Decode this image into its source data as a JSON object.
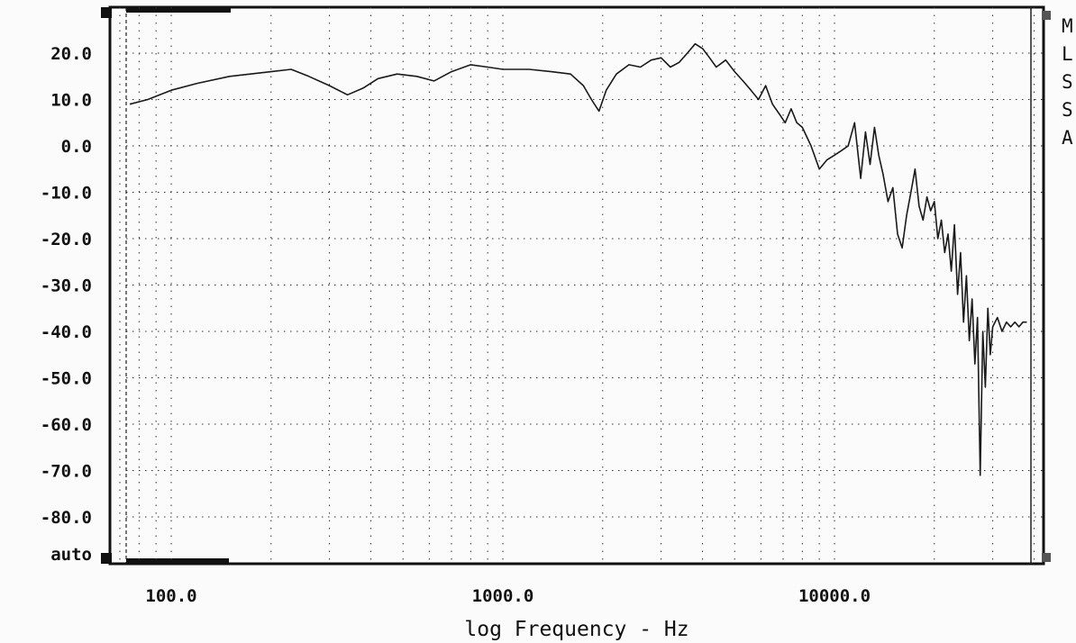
{
  "chart_data": {
    "type": "line",
    "title": "",
    "xlabel": "log Frequency - Hz",
    "ylabel": "",
    "x_scale": "log",
    "xlim": [
      70,
      40000
    ],
    "ylim": [
      -90,
      30
    ],
    "grid": true,
    "x_tick_labels": [
      {
        "value": 100,
        "label": "100.0"
      },
      {
        "value": 1000,
        "label": "1000.0"
      },
      {
        "value": 10000,
        "label": "10000.0"
      }
    ],
    "y_tick_labels": [
      {
        "value": 20,
        "label": "20.0"
      },
      {
        "value": 10,
        "label": "10.0"
      },
      {
        "value": 0,
        "label": "0.0"
      },
      {
        "value": -10,
        "label": "-10.0"
      },
      {
        "value": -20,
        "label": "-20.0"
      },
      {
        "value": -30,
        "label": "-30.0"
      },
      {
        "value": -40,
        "label": "-40.0"
      },
      {
        "value": -50,
        "label": "-50.0"
      },
      {
        "value": -60,
        "label": "-60.0"
      },
      {
        "value": -70,
        "label": "-70.0"
      },
      {
        "value": -80,
        "label": "-80.0"
      },
      {
        "value": -90,
        "label": "auto"
      }
    ],
    "side_letters": [
      "M",
      "L",
      "S",
      "S",
      "A"
    ],
    "series": [
      {
        "x": [
          75,
          85,
          100,
          120,
          150,
          200,
          230,
          260,
          300,
          340,
          380,
          420,
          480,
          550,
          620,
          700,
          800,
          900,
          1000,
          1200,
          1400,
          1600,
          1750,
          1850,
          1950,
          2050,
          2200,
          2400,
          2600,
          2800,
          3000,
          3200,
          3400,
          3600,
          3800,
          4000,
          4200,
          4400,
          4700,
          5000,
          5300,
          5600,
          5900,
          6200,
          6500,
          6800,
          7100,
          7400,
          7700,
          8000,
          8500,
          9000,
          9500,
          10000,
          10500,
          11000,
          11500,
          12000,
          12400,
          12800,
          13200,
          13600,
          14000,
          14500,
          15000,
          15500,
          16000,
          16500,
          17000,
          17500,
          18000,
          18500,
          19000,
          19500,
          20000,
          20500,
          21000,
          21500,
          22000,
          22500,
          23000,
          23500,
          24000,
          24500,
          25000,
          25500,
          26000,
          26500,
          27000,
          27500,
          28000,
          28500,
          29000,
          29500,
          30000,
          31000,
          32000,
          33000,
          34000,
          35000,
          36000,
          37000,
          38000
        ],
        "y": [
          9,
          10,
          12,
          13.5,
          15,
          16,
          16.5,
          15,
          13,
          11,
          12.5,
          14.5,
          15.5,
          15,
          14,
          16,
          17.5,
          17,
          16.5,
          16.5,
          16,
          15.5,
          13,
          10,
          7.5,
          12,
          15.5,
          17.5,
          17,
          18.5,
          19,
          17,
          18,
          20,
          22,
          21,
          19,
          17,
          18.5,
          16,
          14,
          12,
          10,
          13,
          9,
          7,
          5,
          8,
          5,
          4,
          0,
          -5,
          -3,
          -2,
          -1,
          0,
          5,
          -7,
          3,
          -4,
          4,
          -2,
          -6,
          -12,
          -9,
          -19,
          -22,
          -15,
          -10,
          -5,
          -13,
          -16,
          -11,
          -14,
          -12,
          -20,
          -16,
          -23,
          -19,
          -27,
          -17,
          -32,
          -23,
          -38,
          -28,
          -42,
          -33,
          -47,
          -37,
          -71,
          -40,
          -52,
          -35,
          -45,
          -39,
          -37,
          -40,
          -38,
          -39,
          -38,
          -39,
          -38,
          -38
        ]
      }
    ]
  }
}
